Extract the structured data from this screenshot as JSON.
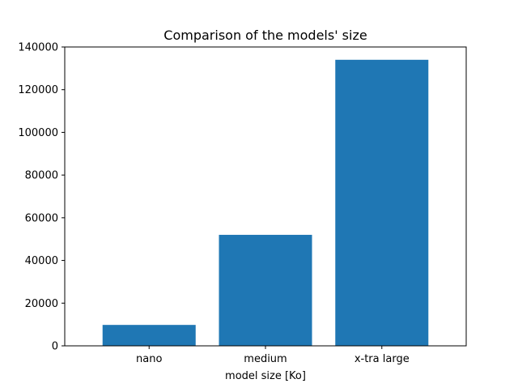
{
  "chart_data": {
    "type": "bar",
    "title": "Comparison of the models' size",
    "xlabel": "model size [Ko]",
    "ylabel": "",
    "categories": [
      "nano",
      "medium",
      "x-tra large"
    ],
    "values": [
      9800,
      52000,
      134000
    ],
    "ylim": [
      0,
      140000
    ],
    "yticks": [
      0,
      20000,
      40000,
      60000,
      80000,
      100000,
      120000,
      140000
    ],
    "bar_color": "#1f77b4",
    "grid": false,
    "legend": "none"
  }
}
